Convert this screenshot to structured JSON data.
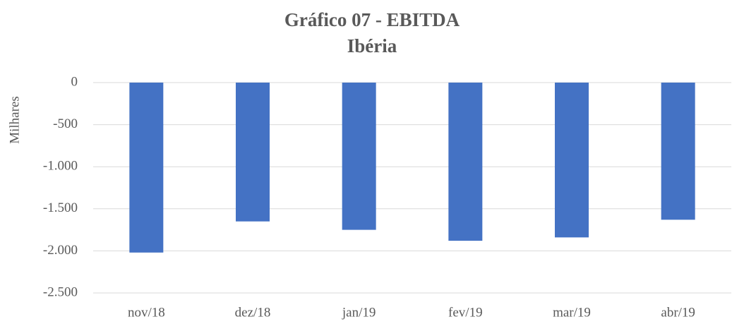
{
  "chart_data": {
    "type": "bar",
    "title": "Gráfico 07 - EBITDA",
    "subtitle": "Ibéria",
    "y_label": "Milhares",
    "categories": [
      "nov/18",
      "dez/18",
      "jan/19",
      "fev/19",
      "mar/19",
      "abr/19"
    ],
    "values": [
      -2020,
      -1650,
      -1750,
      -1880,
      -1840,
      -1630
    ],
    "color": "#4472c4",
    "ylim": [
      -2500,
      0
    ],
    "yticks": [
      0,
      -500,
      {
        "value": -1000,
        "label": "-1.000"
      },
      {
        "value": -1500,
        "label": "-1.500"
      },
      {
        "value": -2000,
        "label": "-2.000"
      },
      {
        "value": -2500,
        "label": "-2.500"
      }
    ],
    "grid": true
  }
}
